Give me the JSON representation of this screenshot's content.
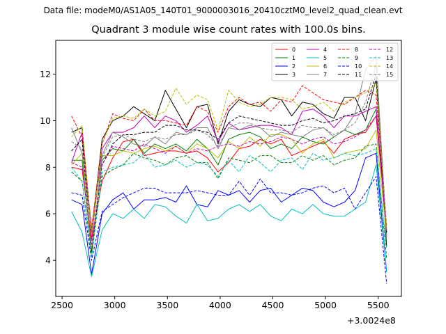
{
  "figure": {
    "suptitle": "Data file: modeM0/AS1A05_140T01_9000003016_20410cztM0_level2_quad_clean.evt",
    "x_offset_label": "+3.0024e8"
  },
  "chart_data": {
    "type": "line",
    "title": "Quadrant 3 module wise count rates with 100.0s bins.",
    "xlabel": "",
    "ylabel": "",
    "xlim": [
      2440,
      5720
    ],
    "ylim": [
      2.45,
      13.45
    ],
    "xticks": [
      2500,
      3000,
      3500,
      4000,
      4500,
      5000,
      5500
    ],
    "yticks": [
      4,
      6,
      8,
      10,
      12
    ],
    "grid": false,
    "legend": {
      "placement": "top-right",
      "columns": 4
    },
    "x": [
      2590,
      2690,
      2780,
      2880,
      2980,
      3080,
      3180,
      3280,
      3380,
      3480,
      3580,
      3680,
      3780,
      3880,
      3980,
      4080,
      4180,
      4280,
      4380,
      4480,
      4580,
      4680,
      4780,
      4880,
      4980,
      5080,
      5180,
      5280,
      5380,
      5480,
      5580
    ],
    "series": [
      {
        "name": "0",
        "color": "#ff0000",
        "dash": false,
        "values": [
          8.0,
          7.9,
          4.9,
          7.4,
          8.4,
          9.1,
          9.2,
          8.5,
          8.6,
          8.7,
          8.7,
          8.6,
          8.7,
          8.4,
          7.8,
          8.2,
          8.8,
          8.9,
          9.2,
          9.0,
          9.2,
          8.5,
          8.7,
          8.9,
          9.1,
          8.6,
          9.2,
          9.4,
          9.5,
          10.2,
          5.3
        ]
      },
      {
        "name": "1",
        "color": "#008000",
        "dash": false,
        "values": [
          8.3,
          8.3,
          4.3,
          8.3,
          8.8,
          8.7,
          9.2,
          8.6,
          9.0,
          8.8,
          9.0,
          8.7,
          9.2,
          8.8,
          8.1,
          9.2,
          9.4,
          9.5,
          9.3,
          8.8,
          9.0,
          8.8,
          9.3,
          9.1,
          9.0,
          9.3,
          9.6,
          9.4,
          9.6,
          10.5,
          5.2
        ]
      },
      {
        "name": "2",
        "color": "#0000ff",
        "dash": false,
        "values": [
          6.6,
          6.4,
          3.4,
          6.0,
          6.6,
          6.9,
          6.2,
          6.6,
          6.6,
          6.7,
          6.5,
          7.2,
          6.4,
          6.3,
          7.0,
          6.8,
          7.0,
          6.5,
          7.0,
          7.1,
          6.5,
          6.8,
          7.1,
          7.0,
          6.5,
          6.3,
          6.5,
          7.0,
          8.4,
          8.6,
          3.5
        ]
      },
      {
        "name": "3",
        "color": "#000000",
        "dash": false,
        "values": [
          9.5,
          9.7,
          5.2,
          9.2,
          10.0,
          10.2,
          10.6,
          10.3,
          10.0,
          11.3,
          10.5,
          9.7,
          10.6,
          10.7,
          9.0,
          10.4,
          10.9,
          10.7,
          10.6,
          11.0,
          10.9,
          10.2,
          10.8,
          10.7,
          10.3,
          10.1,
          11.0,
          11.0,
          10.0,
          11.8,
          4.6
        ]
      },
      {
        "name": "4",
        "color": "#bf00bf",
        "dash": false,
        "values": [
          8.2,
          9.5,
          5.0,
          8.8,
          9.5,
          9.5,
          9.7,
          10.2,
          9.7,
          10.2,
          10.0,
          9.5,
          9.8,
          10.2,
          9.1,
          9.9,
          9.6,
          9.7,
          9.8,
          9.8,
          9.7,
          9.4,
          10.4,
          10.5,
          10.2,
          9.7,
          10.2,
          10.2,
          10.4,
          10.6,
          5.1
        ]
      },
      {
        "name": "5",
        "color": "#00bfbf",
        "dash": false,
        "values": [
          6.1,
          5.2,
          3.3,
          5.3,
          6.0,
          5.8,
          6.2,
          5.8,
          6.4,
          6.3,
          5.9,
          5.6,
          6.4,
          5.7,
          5.8,
          6.2,
          6.4,
          6.1,
          6.4,
          5.9,
          5.7,
          6.2,
          6.0,
          6.4,
          6.0,
          5.9,
          5.9,
          6.2,
          6.5,
          8.1,
          3.5
        ]
      },
      {
        "name": "6",
        "color": "#bfbf00",
        "dash": false,
        "values": [
          8.1,
          8.6,
          4.2,
          8.5,
          8.5,
          8.7,
          8.6,
          8.8,
          8.9,
          8.7,
          8.9,
          8.6,
          9.0,
          8.8,
          8.4,
          9.1,
          8.8,
          9.3,
          8.9,
          9.4,
          9.4,
          9.2,
          8.6,
          9.0,
          9.2,
          8.4,
          8.6,
          8.7,
          8.8,
          9.6,
          5.0
        ]
      },
      {
        "name": "7",
        "color": "#808080",
        "dash": false,
        "values": [
          9.7,
          8.6,
          5.3,
          8.5,
          9.5,
          9.3,
          9.0,
          8.9,
          9.3,
          9.0,
          9.5,
          9.4,
          9.7,
          9.7,
          8.8,
          9.7,
          9.6,
          9.8,
          9.7,
          9.3,
          9.5,
          9.4,
          9.3,
          9.6,
          9.7,
          9.3,
          9.6,
          10.3,
          12.2,
          12.8,
          5.0
        ]
      },
      {
        "name": "8",
        "color": "#ff0000",
        "dash": true,
        "values": [
          10.2,
          9.3,
          5.4,
          9.0,
          10.3,
          10.1,
          10.0,
          10.5,
          10.0,
          10.0,
          9.9,
          9.8,
          10.6,
          10.4,
          9.5,
          10.6,
          11.0,
          10.7,
          10.8,
          10.4,
          10.9,
          10.8,
          11.5,
          11.2,
          10.9,
          10.8,
          10.7,
          11.0,
          11.3,
          11.1,
          5.5
        ]
      },
      {
        "name": "9",
        "color": "#008000",
        "dash": true,
        "values": [
          7.8,
          7.4,
          4.3,
          7.6,
          7.9,
          8.1,
          8.6,
          8.4,
          8.3,
          8.1,
          8.4,
          8.5,
          8.2,
          8.2,
          7.5,
          8.4,
          8.3,
          8.2,
          8.5,
          8.5,
          8.2,
          8.2,
          8.5,
          8.3,
          8.5,
          8.1,
          8.3,
          8.4,
          8.9,
          9.0,
          4.1
        ]
      },
      {
        "name": "10",
        "color": "#0000ff",
        "dash": true,
        "values": [
          6.9,
          6.8,
          4.0,
          6.1,
          6.4,
          6.7,
          6.9,
          7.1,
          7.1,
          6.9,
          6.9,
          6.9,
          7.0,
          6.9,
          6.8,
          6.8,
          7.4,
          6.8,
          7.5,
          6.9,
          6.9,
          6.8,
          6.9,
          7.1,
          7.2,
          6.9,
          7.1,
          6.2,
          6.9,
          7.6,
          3.0
        ]
      },
      {
        "name": "11",
        "color": "#000000",
        "dash": true,
        "values": [
          8.7,
          9.2,
          4.4,
          8.1,
          9.0,
          9.4,
          9.4,
          9.5,
          9.5,
          9.8,
          9.8,
          9.6,
          9.6,
          9.5,
          9.2,
          9.9,
          10.2,
          10.1,
          10.0,
          9.9,
          9.8,
          9.8,
          10.0,
          10.1,
          9.9,
          10.0,
          10.2,
          10.3,
          10.5,
          12.0,
          5.2
        ]
      },
      {
        "name": "12",
        "color": "#bf00bf",
        "dash": true,
        "values": [
          8.2,
          8.0,
          4.7,
          8.1,
          8.9,
          8.8,
          8.7,
          9.0,
          8.8,
          8.6,
          8.9,
          8.6,
          8.8,
          8.7,
          8.9,
          9.0,
          8.9,
          9.1,
          9.0,
          9.1,
          9.3,
          9.2,
          9.0,
          9.2,
          9.3,
          9.0,
          9.1,
          9.3,
          9.6,
          10.2,
          5.4
        ]
      },
      {
        "name": "13",
        "color": "#00bfbf",
        "dash": true,
        "values": [
          8.0,
          7.4,
          4.1,
          7.8,
          8.0,
          8.1,
          8.2,
          8.6,
          8.0,
          8.1,
          8.3,
          8.0,
          8.2,
          8.1,
          7.6,
          8.3,
          7.8,
          8.5,
          8.2,
          7.8,
          8.3,
          8.4,
          7.9,
          8.6,
          8.3,
          8.4,
          8.6,
          8.5,
          8.6,
          8.8,
          4.5
        ]
      },
      {
        "name": "14",
        "color": "#bfbf00",
        "dash": true,
        "values": [
          9.3,
          9.8,
          5.1,
          9.0,
          10.1,
          10.2,
          10.1,
          10.5,
          10.2,
          10.4,
          11.4,
          10.7,
          11.1,
          10.9,
          9.6,
          11.3,
          10.8,
          10.6,
          10.7,
          11.0,
          11.0,
          10.9,
          10.5,
          10.6,
          10.8,
          10.4,
          10.8,
          11.0,
          11.2,
          11.6,
          5.4
        ]
      },
      {
        "name": "15",
        "color": "#808080",
        "dash": true,
        "values": [
          9.1,
          8.8,
          4.5,
          8.4,
          9.3,
          9.4,
          9.2,
          9.1,
          9.3,
          9.2,
          9.4,
          9.4,
          9.6,
          9.4,
          8.9,
          9.7,
          9.9,
          9.9,
          9.7,
          9.6,
          9.6,
          9.5,
          9.8,
          9.7,
          9.7,
          9.4,
          9.6,
          9.9,
          10.8,
          12.4,
          5.3
        ]
      }
    ]
  }
}
